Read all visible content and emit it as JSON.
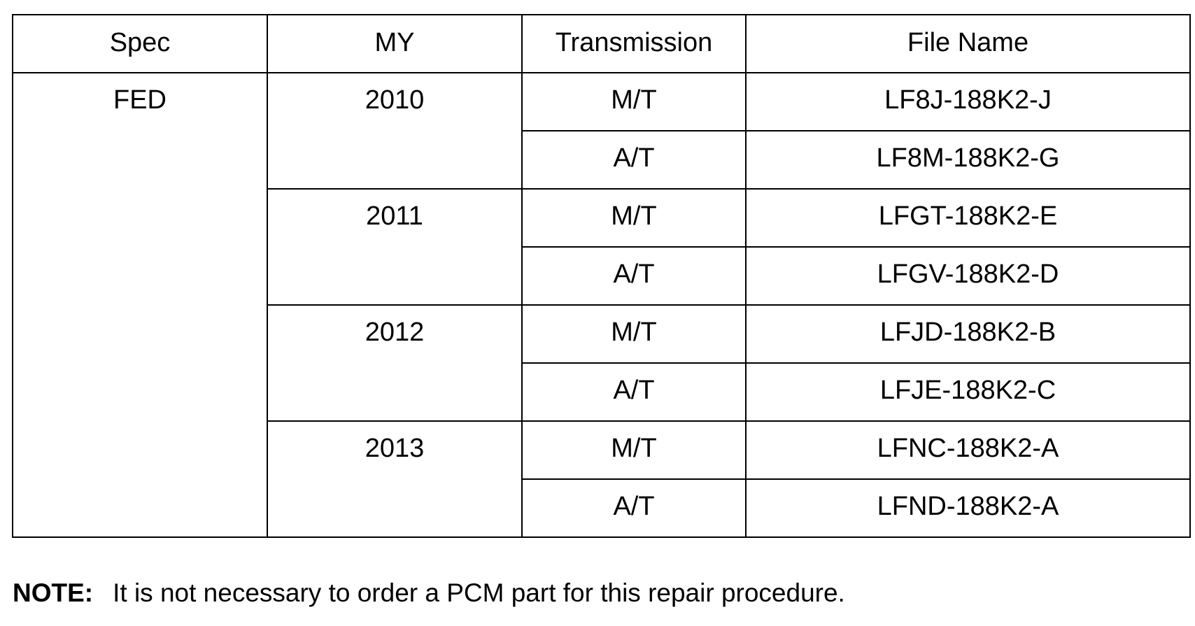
{
  "table": {
    "headers": [
      "Spec",
      "MY",
      "Transmission",
      "File Name"
    ],
    "spec": "FED",
    "groups": [
      {
        "my": "2010",
        "rows": [
          {
            "trans": "M/T",
            "file": "LF8J-188K2-J"
          },
          {
            "trans": "A/T",
            "file": "LF8M-188K2-G"
          }
        ]
      },
      {
        "my": "2011",
        "rows": [
          {
            "trans": "M/T",
            "file": "LFGT-188K2-E"
          },
          {
            "trans": "A/T",
            "file": "LFGV-188K2-D"
          }
        ]
      },
      {
        "my": "2012",
        "rows": [
          {
            "trans": "M/T",
            "file": "LFJD-188K2-B"
          },
          {
            "trans": "A/T",
            "file": "LFJE-188K2-C"
          }
        ]
      },
      {
        "my": "2013",
        "rows": [
          {
            "trans": "M/T",
            "file": "LFNC-188K2-A"
          },
          {
            "trans": "A/T",
            "file": "LFND-188K2-A"
          }
        ]
      }
    ]
  },
  "note": {
    "label": "NOTE:",
    "text": "It is not necessary to order a PCM part for this repair procedure."
  }
}
